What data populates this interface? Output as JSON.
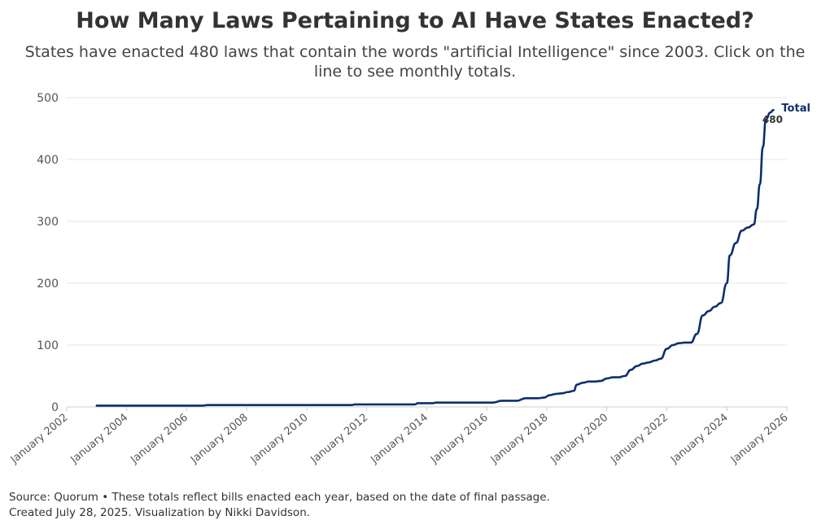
{
  "title": "How Many Laws Pertaining to AI Have States Enacted?",
  "subtitle": "States have enacted 480 laws that contain the words \"artificial Intelligence\" since 2003. Click on the line to see monthly totals.",
  "footer": {
    "source": "Source: Quorum • These totals reflect bills enacted each year, based on the date of final passage.",
    "credit": "Created July 28, 2025. Visualization by Nikki Davidson."
  },
  "colors": {
    "line": "#0d2f6e"
  },
  "chart_data": {
    "type": "line",
    "title": "How Many Laws Pertaining to AI Have States Enacted?",
    "xlabel": "",
    "ylabel": "",
    "xlim": [
      2002,
      2026
    ],
    "ylim": [
      0,
      500
    ],
    "grid": true,
    "x_ticks": [
      {
        "value": 2002,
        "label": "January 2002"
      },
      {
        "value": 2004,
        "label": "January 2004"
      },
      {
        "value": 2006,
        "label": "January 2006"
      },
      {
        "value": 2008,
        "label": "January 2008"
      },
      {
        "value": 2010,
        "label": "January 2010"
      },
      {
        "value": 2012,
        "label": "January 2012"
      },
      {
        "value": 2014,
        "label": "January 2014"
      },
      {
        "value": 2016,
        "label": "January 2016"
      },
      {
        "value": 2018,
        "label": "January 2018"
      },
      {
        "value": 2020,
        "label": "January 2020"
      },
      {
        "value": 2022,
        "label": "January 2022"
      },
      {
        "value": 2024,
        "label": "January 2024"
      },
      {
        "value": 2026,
        "label": "January 2026"
      }
    ],
    "y_ticks": [
      {
        "value": 0,
        "label": "0"
      },
      {
        "value": 100,
        "label": "100"
      },
      {
        "value": 200,
        "label": "200"
      },
      {
        "value": 300,
        "label": "300"
      },
      {
        "value": 400,
        "label": "400"
      },
      {
        "value": 500,
        "label": "500"
      }
    ],
    "series": [
      {
        "name": "Total",
        "end_label": "Total",
        "end_value_label": "480",
        "x": [
          2003.0,
          2006.5,
          2006.7,
          2011.5,
          2011.6,
          2013.6,
          2013.7,
          2014.2,
          2014.3,
          2016.2,
          2016.5,
          2017.0,
          2017.3,
          2017.7,
          2017.9,
          2018.1,
          2018.3,
          2018.5,
          2018.7,
          2018.9,
          2019.0,
          2019.2,
          2019.4,
          2019.6,
          2019.8,
          2020.0,
          2020.2,
          2020.4,
          2020.6,
          2020.8,
          2021.0,
          2021.2,
          2021.4,
          2021.6,
          2021.8,
          2022.0,
          2022.2,
          2022.4,
          2022.6,
          2022.8,
          2023.0,
          2023.2,
          2023.4,
          2023.6,
          2023.8,
          2024.0,
          2024.1,
          2024.3,
          2024.5,
          2024.7,
          2024.9,
          2025.0,
          2025.1,
          2025.2,
          2025.3,
          2025.45,
          2025.55
        ],
        "values": [
          2,
          2,
          3,
          3,
          4,
          4,
          6,
          6,
          7,
          7,
          10,
          10,
          14,
          14,
          15,
          19,
          21,
          22,
          24,
          26,
          36,
          39,
          41,
          41,
          42,
          46,
          48,
          48,
          50,
          60,
          66,
          70,
          72,
          75,
          78,
          94,
          100,
          103,
          104,
          104,
          118,
          148,
          155,
          162,
          168,
          200,
          245,
          265,
          285,
          290,
          295,
          320,
          360,
          420,
          465,
          476,
          480
        ]
      }
    ]
  }
}
